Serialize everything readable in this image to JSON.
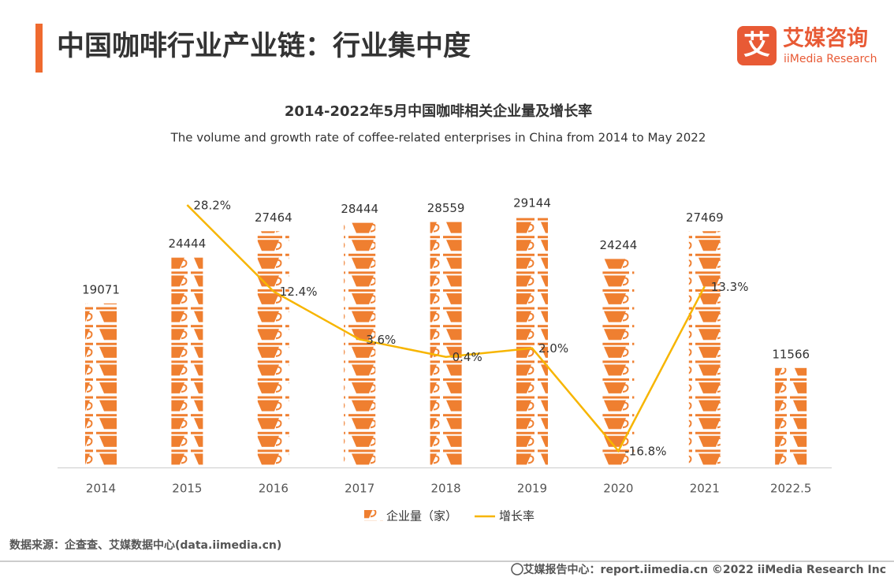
{
  "header": {
    "title": "中国咖啡行业产业链：行业集中度",
    "logo_icon": "艾",
    "logo_name": "艾媒咨询",
    "logo_en": "iiMedia Research"
  },
  "chart_data": {
    "type": "pictorial-bar-line",
    "title": "2014-2022年5月中国咖啡相关企业量及增长率",
    "subtitle": "The volume and growth rate of coffee-related enterprises in China from 2014 to May 2022",
    "categories": [
      "2014",
      "2015",
      "2016",
      "2017",
      "2018",
      "2019",
      "2020",
      "2021",
      "2022.5"
    ],
    "series": [
      {
        "name": "企业量（家）",
        "color": "#ef7f30",
        "values": [
          19071,
          24444,
          27464,
          28444,
          28559,
          29144,
          24244,
          27469,
          11566
        ]
      },
      {
        "name": "增长率",
        "color": "#f7b500",
        "values": [
          null,
          28.2,
          12.4,
          3.6,
          0.4,
          2.0,
          -16.8,
          13.3,
          null
        ],
        "value_labels": [
          null,
          "28.2%",
          "12.4%",
          "3.6%",
          "0.4%",
          "2.0%",
          "-16.8%",
          "13.3%",
          null
        ]
      }
    ]
  },
  "source": "数据来源：企查查、艾媒数据中心(data.iimedia.cn)",
  "footer": "艾媒报告中心：report.iimedia.cn  ©2022  iiMedia Research  Inc"
}
